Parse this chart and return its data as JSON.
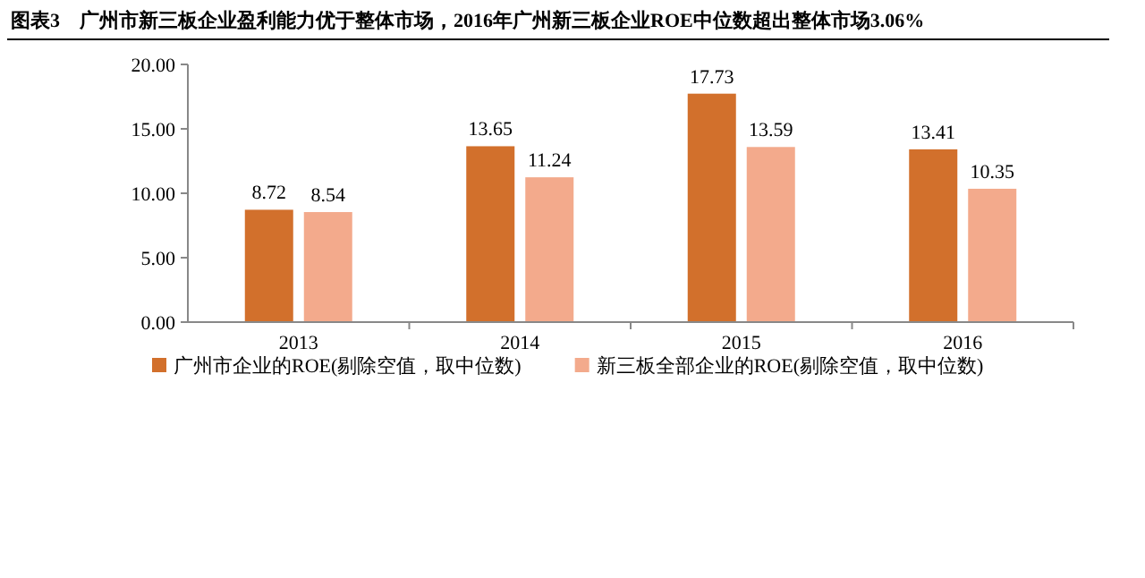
{
  "chart_data": {
    "type": "bar",
    "title": "图表3　广州市新三板企业盈利能力优于整体市场，2016年广州新三板企业ROE中位数超出整体市场3.06%",
    "categories": [
      "2013",
      "2014",
      "2015",
      "2016"
    ],
    "series": [
      {
        "name": "广州市企业的ROE(剔除空值，取中位数)",
        "color": "#d2702c",
        "values": [
          8.72,
          13.65,
          17.73,
          13.41
        ]
      },
      {
        "name": "新三板全部企业的ROE(剔除空值，取中位数)",
        "color": "#f3aa8c",
        "values": [
          8.54,
          11.24,
          13.59,
          10.35
        ]
      }
    ],
    "ylim": [
      0,
      20
    ],
    "yticks": [
      {
        "value": 0,
        "label": "0.00"
      },
      {
        "value": 5,
        "label": "5.00"
      },
      {
        "value": 10,
        "label": "10.00"
      },
      {
        "value": 15,
        "label": "15.00"
      },
      {
        "value": 20,
        "label": "20.00"
      }
    ],
    "data_labels": true,
    "grid": false,
    "legend": "bottom"
  }
}
